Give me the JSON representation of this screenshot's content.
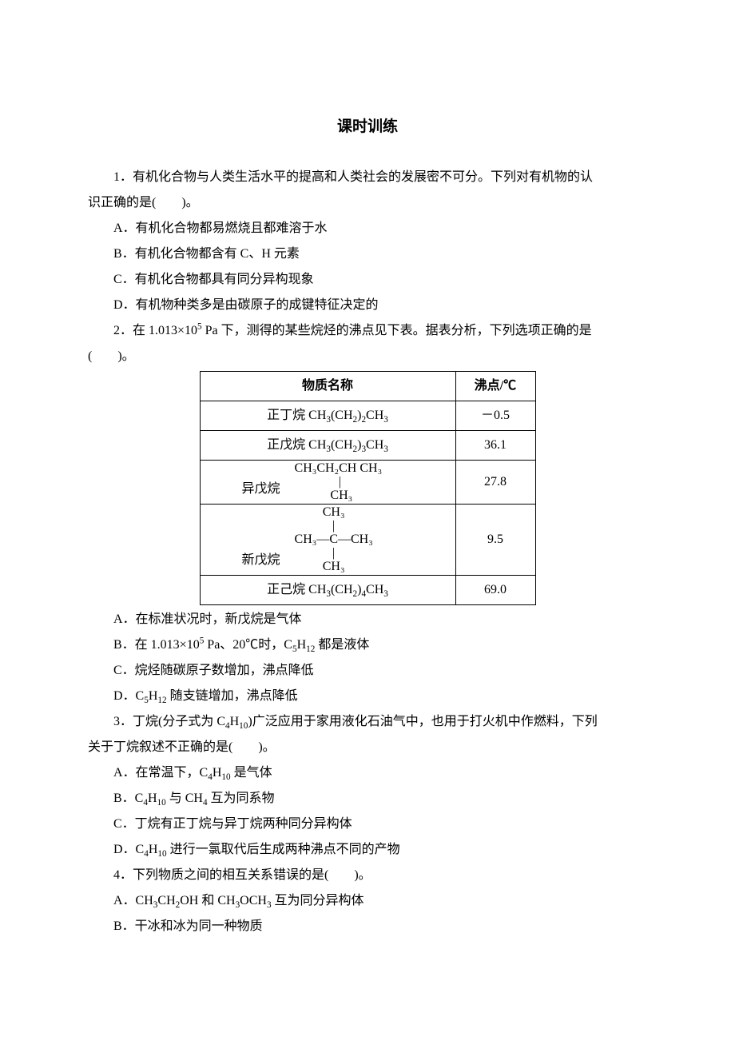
{
  "title": "课时训练",
  "q1": {
    "stem_a": "1．有机化合物与人类生活水平的提高和人类社会的发展密不可分。下列对有机物的认",
    "stem_b": "识正确的是(　　)。",
    "A": "A．有机化合物都易燃烧且都难溶于水",
    "B": "B．有机化合物都含有 C、H 元素",
    "C": "C．有机化合物都具有同分异构现象",
    "D": "D．有机物种类多是由碳原子的成键特征决定的"
  },
  "q2": {
    "stem_a": "2．在 1.013×10",
    "stem_a_sup": "5",
    "stem_a2": " Pa 下，测得的某些烷烃的沸点见下表。据表分析，下列选项正确的是",
    "stem_b": "(　　)。",
    "table": {
      "head_name": "物质名称",
      "head_bp": "沸点/℃",
      "rows": [
        {
          "name_label": "正丁烷 ",
          "formula_prefix": "CH",
          "formula": "3(CH2)2CH3",
          "bp": "－0.5"
        },
        {
          "name_label": "正戊烷 ",
          "formula_prefix": "CH",
          "formula": "3(CH2)3CH3",
          "bp": "36.1"
        },
        {
          "name_label": "异戊烷",
          "bp": "27.8"
        },
        {
          "name_label": "新戊烷",
          "bp": "9.5"
        },
        {
          "name_label": "正己烷 ",
          "formula_prefix": "CH",
          "formula": "3(CH2)4CH3",
          "bp": "69.0"
        }
      ],
      "iso_top": "CH₃CH₂CH CH₃",
      "iso_mid": "      |     ",
      "iso_bot": "     CH₃   ",
      "neo_r1": "   CH₃   ",
      "neo_r2": "    |    ",
      "neo_r3": "CH₃—C—CH₃",
      "neo_r4": "    |    ",
      "neo_r5": "   CH₃   "
    },
    "A": "A．在标准状况时，新戊烷是气体",
    "B_pre": "B．在 1.013×10",
    "B_sup": "5",
    "B_mid": " Pa、20℃时，C",
    "B_sub1": "5",
    "B_mid2": "H",
    "B_sub2": "12",
    "B_post": " 都是液体",
    "C": "C．烷烃随碳原子数增加，沸点降低",
    "D_pre": "D．C",
    "D_sub1": "5",
    "D_mid": "H",
    "D_sub2": "12",
    "D_post": " 随支链增加，沸点降低"
  },
  "q3": {
    "stem_a_pre": "3．丁烷(分子式为 C",
    "stem_a_s1": "4",
    "stem_a_m1": "H",
    "stem_a_s2": "10",
    "stem_a_post": ")广泛应用于家用液化石油气中，也用于打火机中作燃料，下列",
    "stem_b": "关于丁烷叙述不正确的是(　　)。",
    "A_pre": "A．在常温下，C",
    "A_s1": "4",
    "A_m": "H",
    "A_s2": "10",
    "A_post": " 是气体",
    "B_pre": "B．C",
    "B_s1": "4",
    "B_m1": "H",
    "B_s2": "10",
    "B_m2": " 与 CH",
    "B_s3": "4",
    "B_post": " 互为同系物",
    "C": "C．丁烷有正丁烷与异丁烷两种同分异构体",
    "D_pre": "D．C",
    "D_s1": "4",
    "D_m": "H",
    "D_s2": "10",
    "D_post": " 进行一氯取代后生成两种沸点不同的产物"
  },
  "q4": {
    "stem": "4．下列物质之间的相互关系错误的是(　　)。",
    "A_pre": "A．CH",
    "A_s1": "3",
    "A_m1": "CH",
    "A_s2": "2",
    "A_m2": "OH 和 CH",
    "A_s3": "3",
    "A_m3": "OCH",
    "A_s4": "3",
    "A_post": " 互为同分异构体",
    "B": "B．干冰和冰为同一种物质"
  }
}
